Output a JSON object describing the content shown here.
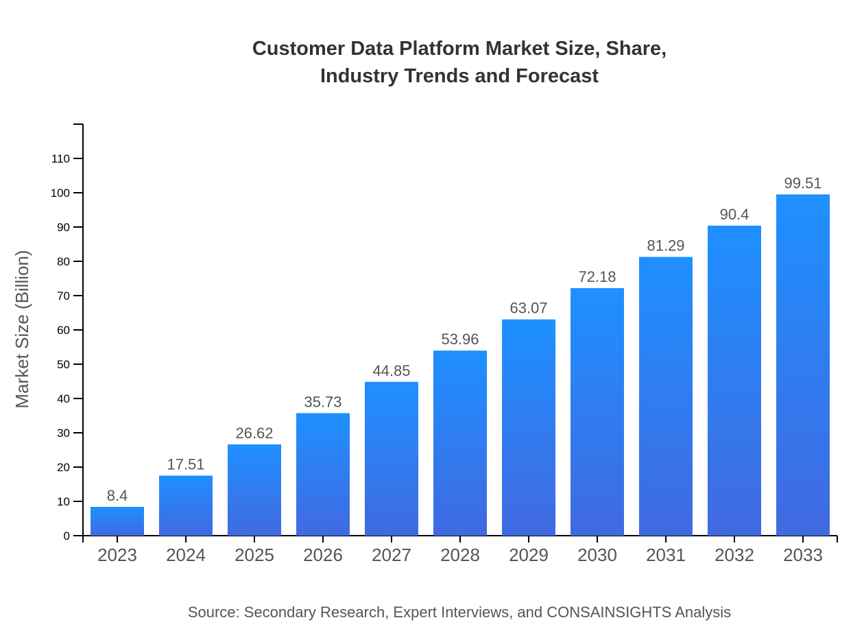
{
  "chart_data": {
    "type": "bar",
    "title_lines": [
      "Customer Data Platform Market Size, Share,",
      "Industry Trends and Forecast"
    ],
    "xlabel": "",
    "ylabel": "Market Size (Billion)",
    "categories": [
      "2023",
      "2024",
      "2025",
      "2026",
      "2027",
      "2028",
      "2029",
      "2030",
      "2031",
      "2032",
      "2033"
    ],
    "values": [
      8.4,
      17.51,
      26.62,
      35.73,
      44.85,
      53.96,
      63.07,
      72.18,
      81.29,
      90.4,
      99.51
    ],
    "ylim": [
      0,
      120
    ],
    "yticks": [
      0,
      10,
      20,
      30,
      40,
      50,
      60,
      70,
      80,
      90,
      100,
      110
    ],
    "grid": false,
    "legend": "none",
    "colors": {
      "bar_top": "#1e90ff",
      "bar_bottom": "#4169e1"
    },
    "source": "Source: Secondary Research, Expert Interviews, and CONSAINSIGHTS Analysis"
  }
}
